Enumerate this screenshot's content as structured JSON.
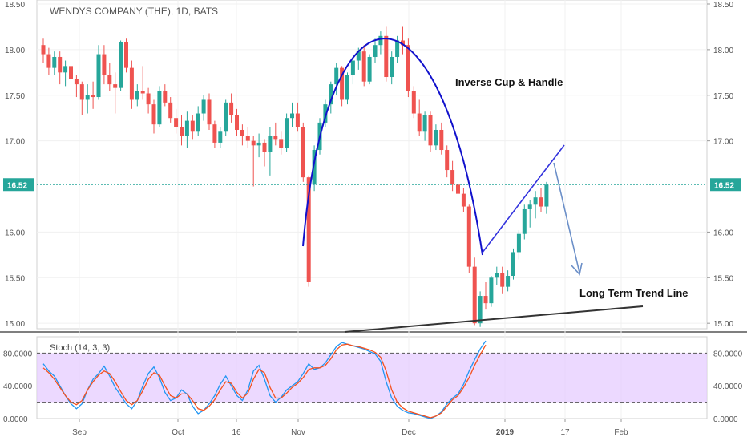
{
  "chart_data": [
    {
      "type": "candlestick",
      "title": "WENDYS COMPANY (THE), 1D, BATS",
      "ylim": [
        14.94,
        18.5
      ],
      "y_ticks": [
        "18.50",
        "18.00",
        "17.50",
        "17.00",
        "16.52",
        "16.00",
        "15.50",
        "15.00"
      ],
      "x_ticks": [
        "Sep",
        "Oct",
        "16",
        "Nov",
        "Dec",
        "2019",
        "17",
        "Feb"
      ],
      "last_price_label": "16.52",
      "last_price": 16.52,
      "colors": {
        "up": "#26a69a",
        "down": "#ef5350",
        "cup": "#1111cc",
        "handle": "#3333dd",
        "trend": "#333333",
        "projection": "#6b8fc8"
      },
      "annotations": [
        {
          "text": "Inverse Cup & Handle"
        },
        {
          "text": "Long Term Trend Line"
        }
      ],
      "ohlc": [
        [
          18.05,
          18.12,
          17.85,
          17.95
        ],
        [
          17.95,
          18.02,
          17.72,
          17.8
        ],
        [
          17.8,
          17.98,
          17.72,
          17.92
        ],
        [
          17.92,
          17.98,
          17.62,
          17.75
        ],
        [
          17.75,
          17.88,
          17.6,
          17.82
        ],
        [
          17.82,
          17.9,
          17.62,
          17.68
        ],
        [
          17.68,
          17.72,
          17.48,
          17.62
        ],
        [
          17.62,
          17.65,
          17.28,
          17.45
        ],
        [
          17.45,
          17.62,
          17.3,
          17.5
        ],
        [
          17.5,
          17.65,
          17.35,
          17.48
        ],
        [
          17.48,
          18.05,
          17.45,
          17.95
        ],
        [
          17.95,
          18.05,
          17.62,
          17.72
        ],
        [
          17.72,
          17.85,
          17.55,
          17.62
        ],
        [
          17.62,
          17.75,
          17.3,
          17.58
        ],
        [
          17.58,
          18.1,
          17.55,
          18.08
        ],
        [
          18.08,
          18.12,
          17.75,
          17.8
        ],
        [
          17.8,
          17.88,
          17.35,
          17.45
        ],
        [
          17.45,
          17.62,
          17.38,
          17.55
        ],
        [
          17.55,
          17.82,
          17.45,
          17.52
        ],
        [
          17.52,
          17.58,
          17.3,
          17.4
        ],
        [
          17.4,
          17.45,
          17.08,
          17.18
        ],
        [
          17.18,
          17.6,
          17.15,
          17.55
        ],
        [
          17.55,
          17.62,
          17.38,
          17.42
        ],
        [
          17.42,
          17.48,
          17.2,
          17.25
        ],
        [
          17.25,
          17.35,
          17.08,
          17.15
        ],
        [
          17.15,
          17.28,
          16.95,
          17.05
        ],
        [
          17.05,
          17.32,
          16.92,
          17.22
        ],
        [
          17.22,
          17.28,
          17.02,
          17.1
        ],
        [
          17.1,
          17.38,
          17.05,
          17.3
        ],
        [
          17.3,
          17.5,
          17.22,
          17.45
        ],
        [
          17.45,
          17.52,
          17.12,
          17.18
        ],
        [
          17.18,
          17.22,
          16.92,
          16.98
        ],
        [
          16.98,
          17.15,
          16.92,
          17.1
        ],
        [
          17.1,
          17.45,
          17.05,
          17.42
        ],
        [
          17.42,
          17.52,
          17.2,
          17.28
        ],
        [
          17.28,
          17.35,
          17.05,
          17.12
        ],
        [
          17.12,
          17.18,
          16.95,
          17.05
        ],
        [
          17.05,
          17.15,
          16.92,
          17.0
        ],
        [
          17.0,
          17.05,
          16.5,
          16.95
        ],
        [
          16.95,
          17.08,
          16.82,
          16.98
        ],
        [
          16.98,
          17.02,
          16.72,
          16.88
        ],
        [
          16.88,
          17.15,
          16.62,
          17.05
        ],
        [
          17.05,
          17.2,
          16.95,
          17.02
        ],
        [
          17.02,
          17.1,
          16.85,
          16.92
        ],
        [
          16.92,
          17.3,
          16.88,
          17.25
        ],
        [
          17.25,
          17.42,
          17.15,
          17.3
        ],
        [
          17.3,
          17.42,
          17.1,
          17.15
        ],
        [
          17.15,
          17.2,
          16.55,
          16.6
        ],
        [
          16.6,
          16.62,
          15.4,
          15.45
        ],
        [
          16.52,
          16.95,
          16.45,
          16.9
        ],
        [
          16.9,
          17.25,
          16.85,
          17.2
        ],
        [
          17.2,
          17.45,
          17.15,
          17.4
        ],
        [
          17.4,
          17.65,
          17.3,
          17.62
        ],
        [
          17.62,
          17.85,
          17.5,
          17.8
        ],
        [
          17.8,
          17.82,
          17.38,
          17.45
        ],
        [
          17.45,
          17.75,
          17.4,
          17.72
        ],
        [
          17.72,
          17.92,
          17.62,
          17.88
        ],
        [
          17.88,
          18.02,
          17.78,
          17.98
        ],
        [
          17.98,
          18.05,
          17.6,
          17.65
        ],
        [
          17.65,
          17.95,
          17.62,
          17.92
        ],
        [
          17.92,
          18.12,
          17.85,
          18.05
        ],
        [
          18.05,
          18.2,
          17.95,
          18.15
        ],
        [
          18.15,
          18.25,
          17.65,
          17.7
        ],
        [
          17.7,
          17.98,
          17.62,
          17.92
        ],
        [
          17.92,
          18.15,
          17.85,
          18.1
        ],
        [
          18.1,
          18.25,
          17.95,
          18.05
        ],
        [
          18.05,
          18.12,
          17.48,
          17.55
        ],
        [
          17.55,
          17.6,
          17.25,
          17.3
        ],
        [
          17.3,
          17.45,
          17.05,
          17.1
        ],
        [
          17.1,
          17.32,
          17.0,
          17.28
        ],
        [
          17.28,
          17.32,
          16.88,
          16.95
        ],
        [
          16.95,
          17.18,
          16.9,
          17.12
        ],
        [
          17.12,
          17.2,
          16.85,
          16.9
        ],
        [
          16.9,
          16.95,
          16.6,
          16.68
        ],
        [
          16.68,
          16.78,
          16.45,
          16.52
        ],
        [
          16.52,
          16.62,
          16.38,
          16.42
        ],
        [
          16.42,
          16.48,
          16.22,
          16.28
        ],
        [
          16.28,
          16.3,
          15.55,
          15.62
        ],
        [
          15.62,
          15.72,
          14.98,
          15.0
        ],
        [
          15.0,
          15.35,
          14.96,
          15.3
        ],
        [
          15.3,
          15.45,
          15.15,
          15.22
        ],
        [
          15.22,
          15.52,
          15.18,
          15.5
        ],
        [
          15.5,
          15.62,
          15.42,
          15.55
        ],
        [
          15.55,
          15.62,
          15.32,
          15.4
        ],
        [
          15.4,
          15.58,
          15.35,
          15.52
        ],
        [
          15.52,
          15.82,
          15.48,
          15.78
        ],
        [
          15.78,
          16.02,
          15.7,
          15.98
        ],
        [
          15.98,
          16.3,
          15.92,
          16.25
        ],
        [
          16.25,
          16.35,
          16.05,
          16.3
        ],
        [
          16.3,
          16.45,
          16.15,
          16.38
        ],
        [
          16.38,
          16.48,
          16.22,
          16.28
        ],
        [
          16.28,
          16.55,
          16.2,
          16.52
        ]
      ]
    },
    {
      "type": "line",
      "title": "Stoch (14, 3, 3)",
      "ylim": [
        0,
        100
      ],
      "y_ticks": [
        "80.0000",
        "40.0000",
        "0.0000"
      ],
      "levels": [
        80,
        20
      ],
      "band_color": "#e6ccff",
      "series": [
        {
          "color": "#2196f3",
          "values": [
            67,
            58,
            52,
            40,
            28,
            18,
            12,
            18,
            35,
            48,
            55,
            64,
            52,
            38,
            28,
            18,
            12,
            22,
            40,
            55,
            63,
            50,
            32,
            22,
            25,
            35,
            30,
            15,
            6,
            10,
            18,
            28,
            42,
            52,
            40,
            28,
            22,
            35,
            58,
            65,
            48,
            28,
            20,
            26,
            35,
            40,
            45,
            55,
            67,
            60,
            62,
            68,
            78,
            88,
            93,
            91,
            89,
            87,
            85,
            82,
            79,
            70,
            45,
            25,
            15,
            10,
            7,
            6,
            4,
            2,
            0,
            3,
            8,
            18,
            25,
            30,
            42,
            58,
            72,
            85,
            95
          ]
        },
        {
          "color": "#f4511e",
          "values": [
            62,
            56,
            48,
            38,
            28,
            20,
            17,
            22,
            35,
            45,
            53,
            58,
            55,
            45,
            33,
            22,
            17,
            22,
            34,
            48,
            56,
            53,
            40,
            28,
            25,
            30,
            30,
            22,
            12,
            10,
            15,
            23,
            35,
            45,
            43,
            32,
            25,
            31,
            48,
            60,
            56,
            38,
            25,
            25,
            31,
            38,
            43,
            50,
            60,
            62,
            62,
            65,
            73,
            84,
            90,
            91,
            89,
            88,
            86,
            84,
            81,
            75,
            58,
            35,
            20,
            13,
            9,
            7,
            5,
            3,
            1,
            3,
            7,
            15,
            23,
            28,
            38,
            50,
            65,
            78,
            90
          ]
        }
      ]
    }
  ]
}
